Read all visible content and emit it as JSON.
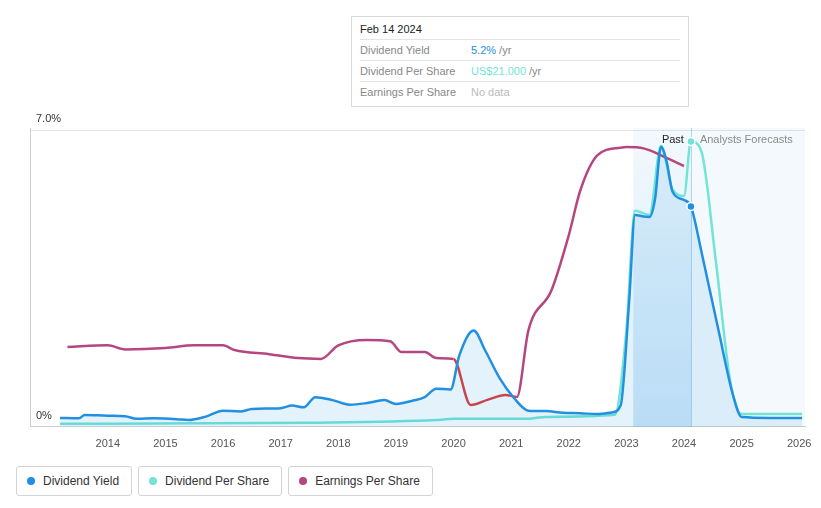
{
  "chart_data": {
    "type": "line",
    "xlim": [
      2012.65,
      2026.1
    ],
    "xticks": [
      2014,
      2015,
      2016,
      2017,
      2018,
      2019,
      2020,
      2021,
      2022,
      2023,
      2024,
      2025,
      2026
    ],
    "ylim": [
      0,
      7.05
    ],
    "yticks": [
      {
        "value": 0,
        "label": "0%"
      },
      {
        "value": 7,
        "label": "7.0%"
      }
    ],
    "y2lim": [
      0,
      22
    ],
    "grid": true,
    "legend": "bottom-left",
    "annotations": {
      "past": "Past",
      "forecast": "Analysts Forecasts"
    },
    "past_band": [
      2023.12,
      2024.12
    ],
    "tooltip": {
      "title": "Feb 14 2024",
      "x": 2024.12,
      "rows": [
        {
          "label": "Dividend Yield",
          "value": "5.2%",
          "unit": "/yr"
        },
        {
          "label": "Dividend Per Share",
          "value": "US$21.000",
          "unit": "/yr"
        },
        {
          "label": "Earnings Per Share",
          "value": "No data"
        }
      ]
    },
    "series": [
      {
        "name": "Dividend Yield",
        "color": "#2190e0",
        "x": [
          2013.17,
          2013.5,
          2013.6,
          2014.0,
          2014.3,
          2014.5,
          2014.8,
          2015.2,
          2015.4,
          2015.7,
          2016.0,
          2016.3,
          2016.5,
          2017.0,
          2017.2,
          2017.4,
          2017.6,
          2017.9,
          2018.2,
          2018.5,
          2018.8,
          2019.0,
          2019.3,
          2019.5,
          2019.7,
          2019.95,
          2020.1,
          2020.35,
          2020.55,
          2020.8,
          2021.05,
          2021.3,
          2021.6,
          2021.9,
          2022.2,
          2022.5,
          2022.75,
          2022.9,
          2023.05,
          2023.15,
          2023.3,
          2023.4,
          2023.5,
          2023.6,
          2023.7,
          2023.8,
          2024.0,
          2024.12,
          2024.3,
          2024.6,
          2024.85,
          2025.0,
          2025.5,
          2026.05
        ],
        "values": [
          0.21,
          0.2,
          0.28,
          0.26,
          0.25,
          0.19,
          0.2,
          0.18,
          0.16,
          0.24,
          0.38,
          0.36,
          0.42,
          0.44,
          0.5,
          0.46,
          0.7,
          0.63,
          0.52,
          0.56,
          0.63,
          0.54,
          0.62,
          0.7,
          0.9,
          0.88,
          1.68,
          2.27,
          1.8,
          1.15,
          0.68,
          0.38,
          0.37,
          0.33,
          0.32,
          0.3,
          0.34,
          0.5,
          3.0,
          5.0,
          4.96,
          4.95,
          5.4,
          6.6,
          6.25,
          5.55,
          5.35,
          5.2,
          4.15,
          2.27,
          0.75,
          0.23,
          0.21,
          0.21
        ]
      },
      {
        "name": "Dividend Per Share",
        "color": "#72e4d5",
        "axis": "y2",
        "x": [
          2013.17,
          2014.0,
          2017.5,
          2019.7,
          2020.0,
          2021.3,
          2021.6,
          2022.8,
          2023.0,
          2023.15,
          2023.4,
          2023.6,
          2023.8,
          2024.0,
          2024.12,
          2024.3,
          2024.55,
          2024.8,
          2025.0,
          2026.05
        ],
        "values": [
          0.22,
          0.22,
          0.3,
          0.5,
          0.59,
          0.59,
          0.73,
          0.88,
          7.1,
          15.9,
          15.6,
          20.7,
          17.5,
          17.0,
          21.0,
          20.3,
          12.3,
          3.45,
          0.95,
          0.95
        ]
      },
      {
        "name": "Earnings Per Share",
        "color": "#b5467f",
        "axis": "y2",
        "x": [
          2013.3,
          2014.0,
          2014.3,
          2015.0,
          2015.5,
          2016.0,
          2016.2,
          2016.8,
          2017.3,
          2017.7,
          2018.0,
          2018.5,
          2018.9,
          2019.1,
          2019.5,
          2019.7,
          2020.0,
          2020.3,
          2020.6,
          2020.9,
          2021.1,
          2021.3,
          2021.7,
          2022.0,
          2022.2,
          2022.5,
          2022.9,
          2023.0,
          2023.3,
          2023.7,
          2024.0
        ],
        "values": [
          5.87,
          6.0,
          5.7,
          5.8,
          6.0,
          6.0,
          5.65,
          5.35,
          5.06,
          5.0,
          6.0,
          6.4,
          6.3,
          5.5,
          5.5,
          5.06,
          5.0,
          1.6,
          2.0,
          2.35,
          2.2,
          7.1,
          10.05,
          14.1,
          17.4,
          20.0,
          20.55,
          20.6,
          20.5,
          19.8,
          19.2
        ],
        "colors": [
          "#b5467f",
          "#b5467f",
          "#b5467f",
          "#b5467f",
          "#b5467f",
          "#b5467f",
          "#b5467f",
          "#b5467f",
          "#b5467f",
          "#b5467f",
          "#b5467f",
          "#b5467f",
          "#b5467f",
          "#b5467f",
          "#b5467f",
          "#b5467f",
          "#e03b3b",
          "#e03b3b",
          "#e03b3b",
          "#e03b3b",
          "#b5467f",
          "#b5467f",
          "#b5467f",
          "#b5467f",
          "#b5467f",
          "#b5467f",
          "#b5467f",
          "#b5467f",
          "#b5467f",
          "#b5467f",
          "#b5467f"
        ]
      }
    ]
  }
}
